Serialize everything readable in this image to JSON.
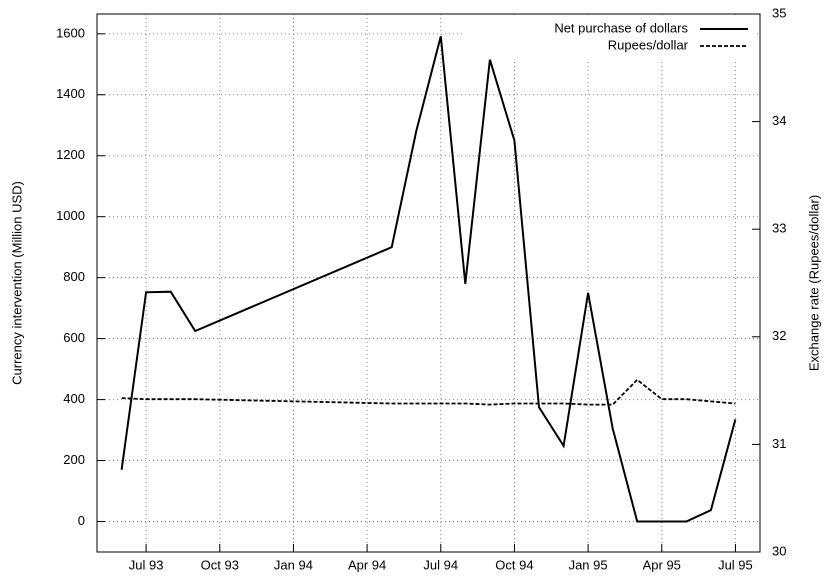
{
  "chart_data": {
    "type": "line",
    "x": [
      "Jun 93",
      "Jul 93",
      "Aug 93",
      "Sep 93",
      "May 94",
      "Jun 94",
      "Jul 94",
      "Aug 94",
      "Sep 94",
      "Oct 94",
      "Nov 94",
      "Dec 94",
      "Jan 95",
      "Feb 95",
      "Mar 95",
      "Apr 95",
      "May 95",
      "Jun 95",
      "Jul 95"
    ],
    "series": [
      {
        "name": "Net purchase of dollars",
        "color": "#000000",
        "dash": "solid",
        "values": [
          170,
          752,
          754,
          625,
          900,
          1280,
          1592,
          780,
          1515,
          1250,
          375,
          248,
          750,
          305,
          0,
          0,
          0,
          37,
          335
        ]
      },
      {
        "name": "Rupees/dollar",
        "color": "#000000",
        "dash": "dashed",
        "axis": "y2",
        "values": [
          31.43,
          31.42,
          31.42,
          31.42,
          31.38,
          31.38,
          31.38,
          31.38,
          31.37,
          31.38,
          31.38,
          31.38,
          31.37,
          31.37,
          31.6,
          31.42,
          31.42,
          31.4,
          31.38
        ]
      }
    ],
    "xlim": [
      "May 93",
      "Aug 95"
    ],
    "xticks": [
      "Jul 93",
      "Oct 93",
      "Jan 94",
      "Apr 94",
      "Jul 94",
      "Oct 94",
      "Jan 95",
      "Apr 95",
      "Jul 95"
    ],
    "ylim": [
      -100,
      1665
    ],
    "yticks": [
      0,
      200,
      400,
      600,
      800,
      1000,
      1200,
      1400,
      1600
    ],
    "y2lim": [
      30,
      35
    ],
    "y2ticks": [
      30,
      31,
      32,
      33,
      34,
      35
    ],
    "ylabel": "Currency intervention (Million USD)",
    "y2label": "Exchange rate (Rupees/dollar)",
    "grid": true,
    "legend": "top-right"
  }
}
